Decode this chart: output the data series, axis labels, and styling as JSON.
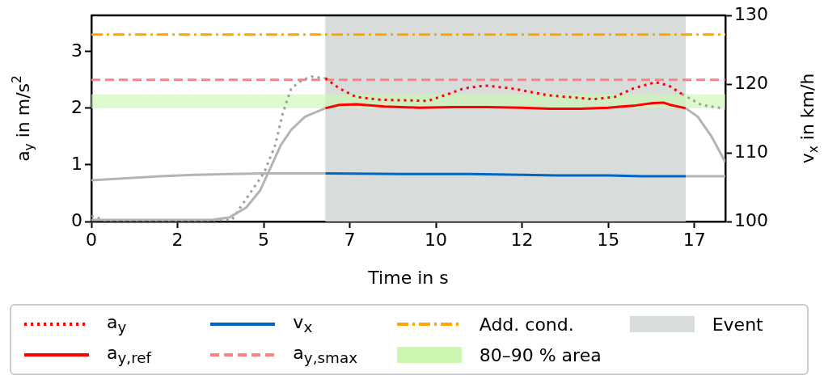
{
  "chart_data": {
    "type": "line",
    "xlabel": "Time in s",
    "ylabel": "a$_{y}$ in m/s$^{2}$",
    "y2label": "v$_{x}$ in km/h",
    "xlim": [
      0,
      18.4
    ],
    "xticks": [
      0,
      {
        "value": 2.5,
        "label": "2"
      },
      5,
      {
        "value": 7.5,
        "label": "7"
      },
      10,
      {
        "value": 12.5,
        "label": "12"
      },
      15,
      {
        "value": 17.5,
        "label": "17"
      }
    ],
    "ylim": [
      0,
      3.64
    ],
    "yticks": [
      0,
      1,
      2,
      3
    ],
    "y2lim": [
      100,
      130
    ],
    "y2ticks": [
      100,
      110,
      120,
      130
    ],
    "grid": false,
    "legend": "bottom",
    "marker": "none",
    "series": [
      {
        "color": "#b4b4b4",
        "line_style": "solid",
        "x": [
          0,
          1,
          2,
          3,
          3.5,
          4.0,
          4.5,
          4.9,
          5.2,
          5.5,
          5.8,
          6.2,
          6.79,
          12,
          17.25,
          17.6,
          18.0,
          18.4
        ],
        "values": [
          0.03,
          0.03,
          0.03,
          0.03,
          0.03,
          0.07,
          0.25,
          0.55,
          0.95,
          1.35,
          1.62,
          1.85,
          2.0,
          null,
          2.0,
          1.85,
          1.5,
          1.05
        ]
      },
      {
        "color": "#a0a0a0",
        "line_style": "dotted",
        "x": [
          0,
          0.5,
          4.08,
          5.02,
          5.33,
          5.56,
          5.8,
          6.1,
          6.39,
          6.79,
          12,
          17.14,
          17.7,
          18.4
        ],
        "values": [
          0.1,
          0.0,
          0.03,
          0.87,
          1.34,
          1.92,
          2.35,
          2.49,
          2.56,
          2.53,
          null,
          2.25,
          2.06,
          1.99
        ]
      },
      {
        "color": "#b4b4b4",
        "line_style": "solid",
        "axis": "y2",
        "x": [
          0,
          1,
          2,
          3,
          4,
          5,
          6,
          6.79,
          12,
          17.25,
          18.4
        ],
        "values": [
          106.0,
          106.3,
          106.6,
          106.8,
          106.9,
          107.0,
          107.0,
          107.0,
          null,
          106.6,
          106.6
        ]
      },
      {
        "name": "a$_{y}$",
        "color": "#ff0000",
        "line_style": "dotted",
        "x": [
          6.79,
          7.2,
          7.68,
          8.38,
          9.77,
          10.26,
          10.8,
          11.43,
          12.2,
          13.24,
          14.56,
          15.19,
          15.73,
          16.37,
          16.76,
          17.14
        ],
        "values": [
          2.53,
          2.35,
          2.2,
          2.15,
          2.13,
          2.23,
          2.35,
          2.4,
          2.35,
          2.23,
          2.16,
          2.2,
          2.35,
          2.46,
          2.4,
          2.25
        ]
      },
      {
        "name": "a$_{y,ref}$",
        "color": "#ff0000",
        "line_style": "solid",
        "x": [
          6.79,
          7.2,
          7.7,
          8.5,
          9.5,
          10.5,
          11.5,
          12.5,
          13.3,
          14.2,
          15.0,
          15.8,
          16.3,
          16.6,
          16.8,
          17.25
        ],
        "values": [
          2.0,
          2.06,
          2.07,
          2.03,
          2.01,
          2.02,
          2.02,
          2.01,
          1.99,
          1.99,
          2.01,
          2.05,
          2.09,
          2.1,
          2.06,
          2.0
        ]
      },
      {
        "name": "v$_{x}$",
        "color": "#0066c4",
        "line_style": "solid",
        "axis": "y2",
        "x": [
          6.79,
          9,
          11,
          12.5,
          13.5,
          15,
          16,
          17.25
        ],
        "values": [
          107.0,
          106.9,
          106.9,
          106.8,
          106.7,
          106.7,
          106.6,
          106.6
        ]
      }
    ],
    "ref_lines": [
      {
        "axis": "y",
        "value": 2.5,
        "label": "a$_{y,smax}$",
        "color": "#ff8080",
        "line_style": "dashed"
      },
      {
        "axis": "y",
        "value": 3.3,
        "label": "Add. cond.",
        "color": "#ffa500",
        "line_style": "dashdot"
      }
    ],
    "bands": [
      {
        "axis": "y",
        "from": 2.0,
        "to": 2.25,
        "label": "80–90 % area",
        "color": "#ccf7b3"
      },
      {
        "axis": "x",
        "from": 6.79,
        "to": 17.25,
        "label": "Event",
        "color": "#d8dcdb"
      }
    ]
  }
}
